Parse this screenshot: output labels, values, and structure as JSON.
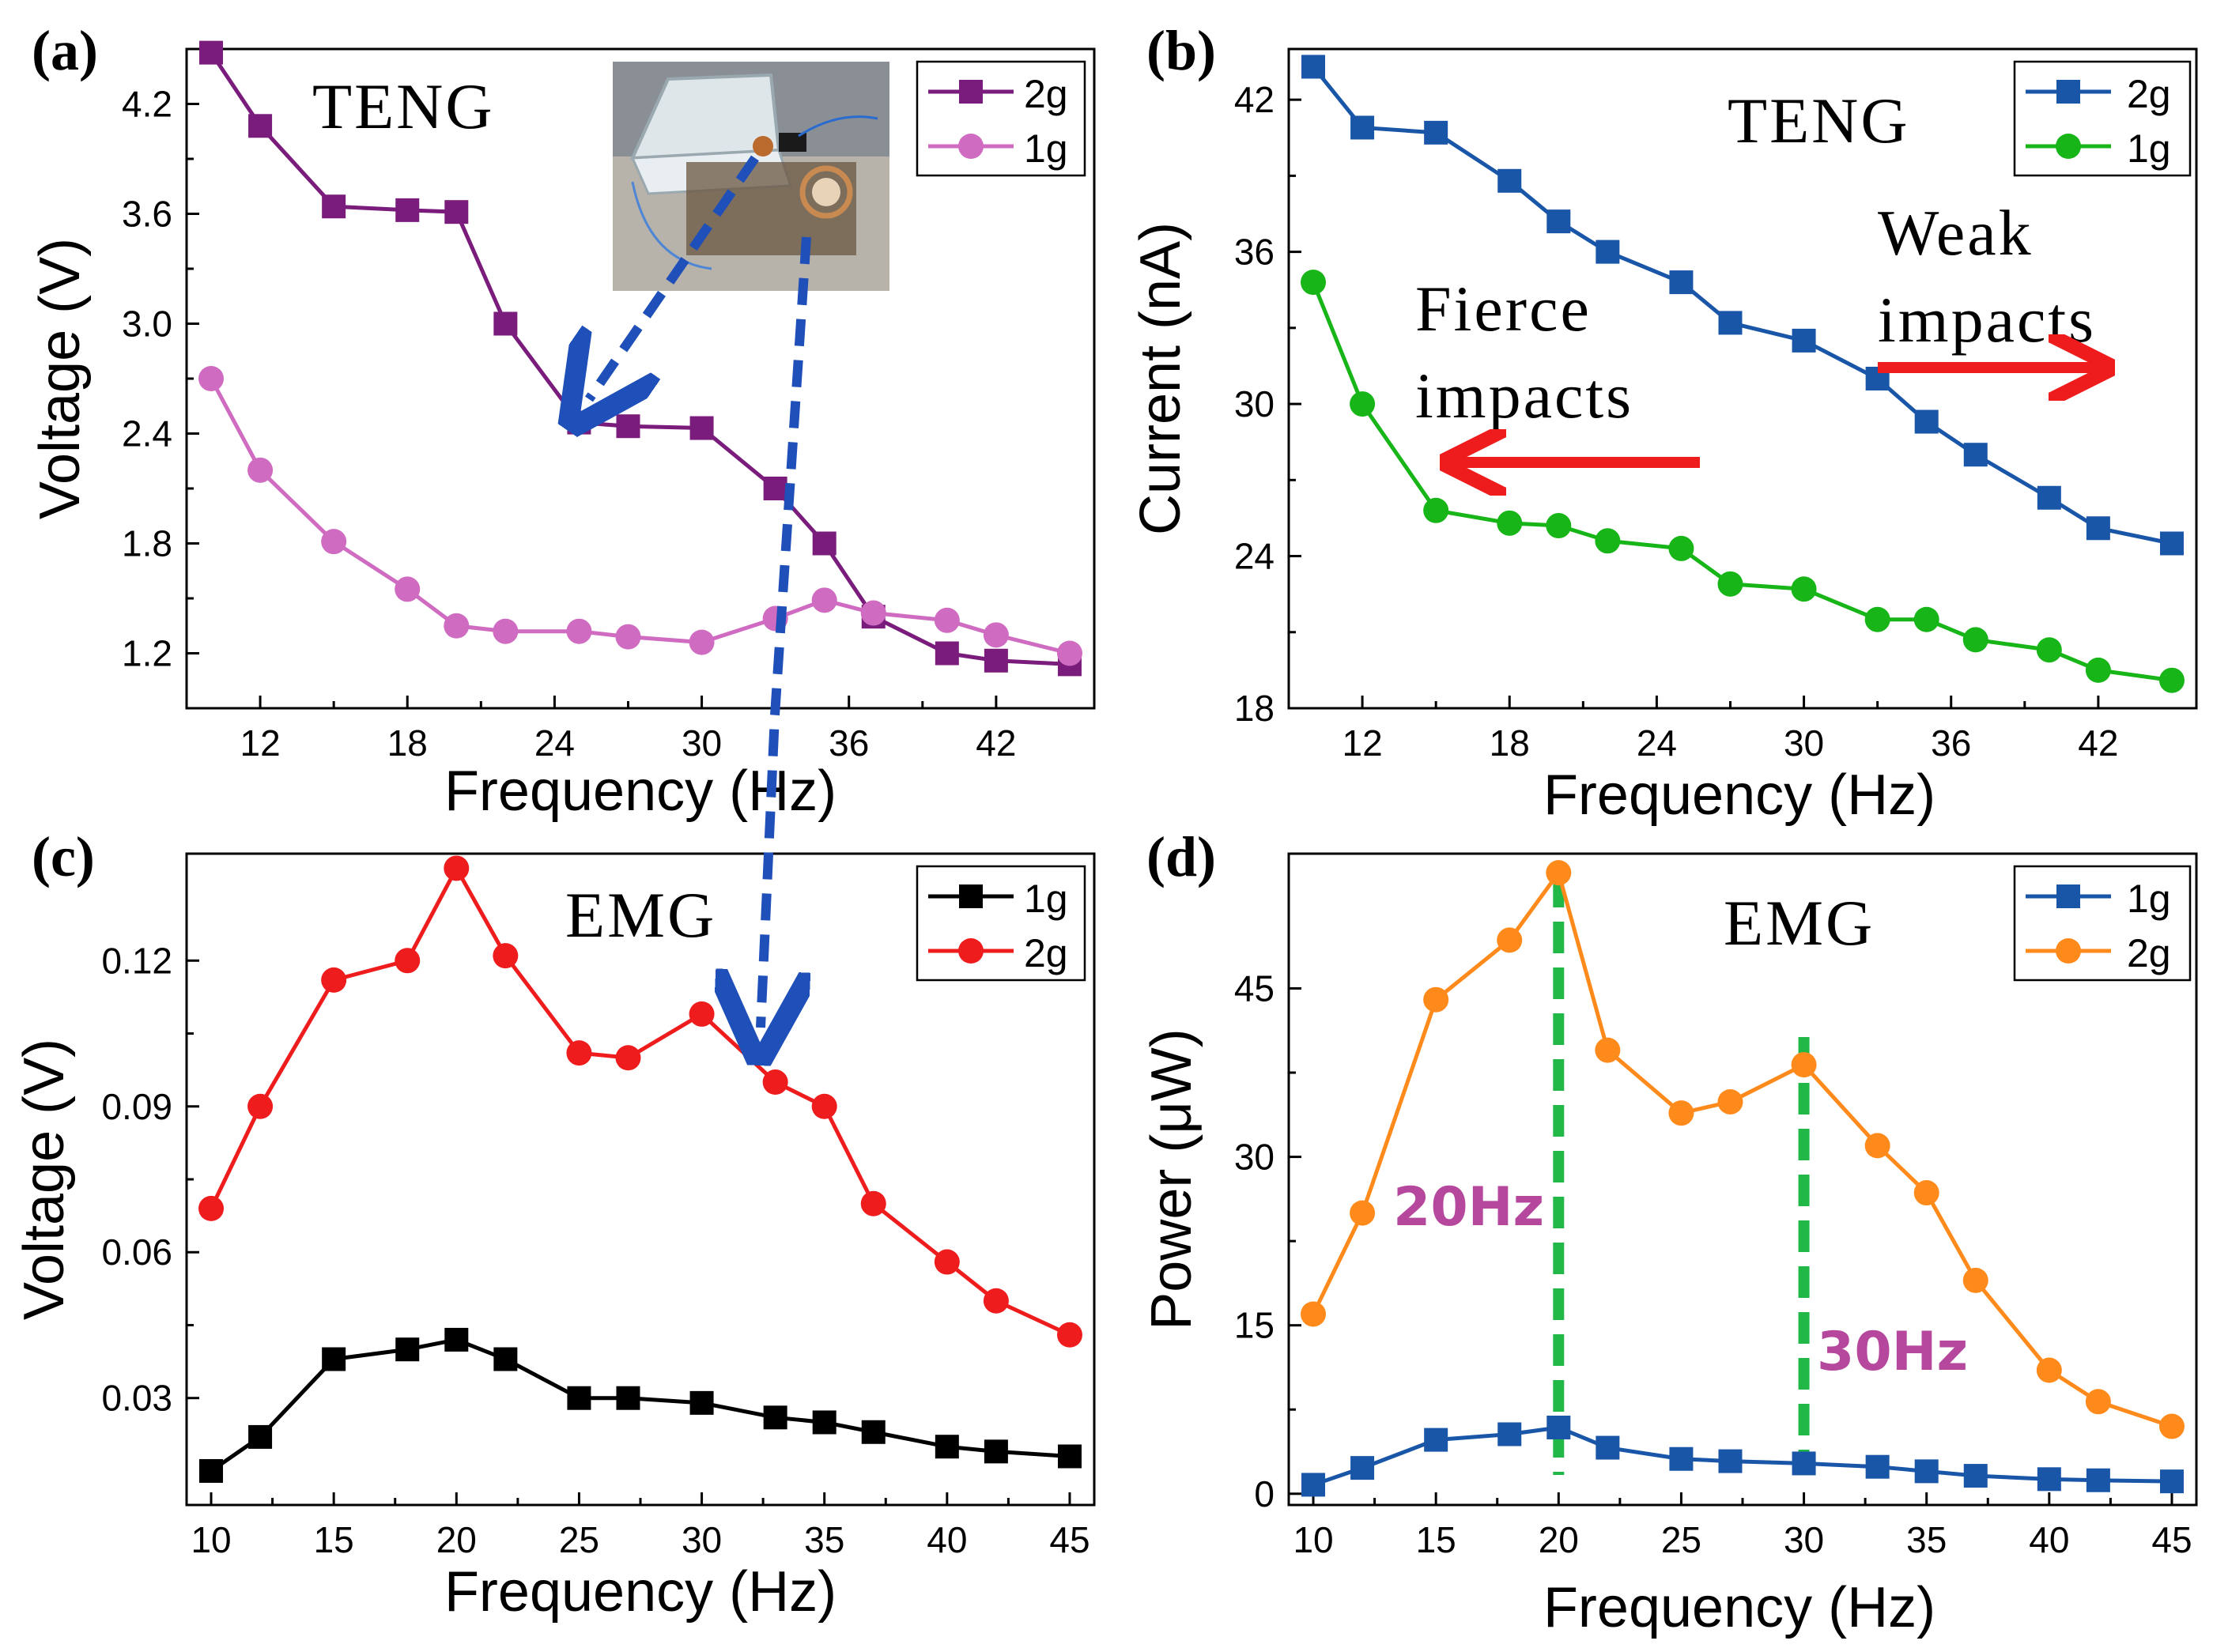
{
  "colors": {
    "purple": "#7a1c7c",
    "pink": "#cf6bc0",
    "blue": "#1a56a8",
    "green": "#17b517",
    "black": "#000000",
    "red": "#ee1c1c",
    "orange": "#ff8a1c",
    "dashBlue": "#1f4fb8",
    "arrowRed": "#ee1c1c",
    "dashGreen": "#21b848",
    "annoPurple": "#b5479c"
  },
  "chart_data": [
    {
      "id": "a",
      "type": "line",
      "panel_label": "(a)",
      "annotation": "TENG",
      "xlabel": "Frequency (Hz)",
      "ylabel": "Voltage (V)",
      "xlim": [
        9,
        46
      ],
      "ylim": [
        0.9,
        4.5
      ],
      "xticks": [
        12,
        18,
        24,
        30,
        36,
        42
      ],
      "yticks": [
        1.2,
        1.8,
        2.4,
        3.0,
        3.6,
        4.2
      ],
      "xtick_labels": [
        "12",
        "18",
        "24",
        "30",
        "36",
        "42"
      ],
      "ytick_labels": [
        "1.2",
        "1.8",
        "2.4",
        "3.0",
        "3.6",
        "4.2"
      ],
      "x": [
        10,
        12,
        15,
        18,
        20,
        22,
        25,
        27,
        30,
        33,
        35,
        37,
        40,
        42,
        45
      ],
      "series": [
        {
          "name": "2g",
          "marker": "square",
          "color": "purple",
          "values": [
            4.48,
            4.08,
            3.64,
            3.62,
            3.61,
            3.0,
            2.46,
            2.44,
            2.43,
            2.1,
            1.8,
            1.4,
            1.2,
            1.16,
            1.14
          ]
        },
        {
          "name": "1g",
          "marker": "circle",
          "color": "pink",
          "values": [
            2.7,
            2.2,
            1.81,
            1.55,
            1.35,
            1.32,
            1.32,
            1.29,
            1.26,
            1.39,
            1.49,
            1.42,
            1.38,
            1.3,
            1.2
          ]
        }
      ]
    },
    {
      "id": "b",
      "type": "line",
      "panel_label": "(b)",
      "annotation": "TENG",
      "xlabel": "Frequency (Hz)",
      "ylabel": "Current (nA)",
      "xlim": [
        9,
        46
      ],
      "ylim": [
        18,
        44
      ],
      "xticks": [
        12,
        18,
        24,
        30,
        36,
        42
      ],
      "yticks": [
        18,
        24,
        30,
        36,
        42
      ],
      "xtick_labels": [
        "12",
        "18",
        "24",
        "30",
        "36",
        "42"
      ],
      "ytick_labels": [
        "18",
        "24",
        "30",
        "36",
        "42"
      ],
      "x": [
        10,
        12,
        15,
        18,
        20,
        22,
        25,
        27,
        30,
        33,
        35,
        37,
        40,
        42,
        45
      ],
      "series": [
        {
          "name": "2g",
          "marker": "square",
          "color": "blue",
          "values": [
            43.3,
            40.9,
            40.7,
            38.8,
            37.2,
            36.0,
            34.8,
            33.2,
            32.5,
            31.0,
            29.3,
            28.0,
            26.3,
            25.1,
            24.5
          ]
        },
        {
          "name": "1g",
          "marker": "circle",
          "color": "green",
          "values": [
            34.8,
            30.0,
            25.8,
            25.3,
            25.2,
            24.6,
            24.3,
            22.9,
            22.7,
            21.5,
            21.5,
            20.7,
            20.3,
            19.5,
            19.1
          ]
        }
      ],
      "annotations": {
        "fierce_line1": "Fierce",
        "fierce_line2": "impacts",
        "weak_line1": "Weak",
        "weak_line2": "impacts"
      }
    },
    {
      "id": "c",
      "type": "line",
      "panel_label": "(c)",
      "annotation": "EMG",
      "xlabel": "Frequency (Hz)",
      "ylabel": "Voltage (V)",
      "xlim": [
        9,
        46
      ],
      "ylim": [
        0.008,
        0.142
      ],
      "xticks": [
        10,
        15,
        20,
        25,
        30,
        35,
        40,
        45
      ],
      "yticks": [
        0.03,
        0.06,
        0.09,
        0.12
      ],
      "xtick_labels": [
        "10",
        "15",
        "20",
        "25",
        "30",
        "35",
        "40",
        "45"
      ],
      "ytick_labels": [
        "0.03",
        "0.06",
        "0.09",
        "0.12"
      ],
      "x": [
        10,
        12,
        15,
        18,
        20,
        22,
        25,
        27,
        30,
        33,
        35,
        37,
        40,
        42,
        45
      ],
      "series": [
        {
          "name": "1g",
          "marker": "square",
          "color": "black",
          "values": [
            0.015,
            0.022,
            0.038,
            0.04,
            0.042,
            0.038,
            0.03,
            0.03,
            0.029,
            0.026,
            0.025,
            0.023,
            0.02,
            0.019,
            0.018
          ]
        },
        {
          "name": "2g",
          "marker": "circle",
          "color": "red",
          "values": [
            0.069,
            0.09,
            0.116,
            0.12,
            0.139,
            0.121,
            0.101,
            0.1,
            0.109,
            0.095,
            0.09,
            0.07,
            0.058,
            0.05,
            0.043
          ]
        }
      ]
    },
    {
      "id": "d",
      "type": "line",
      "panel_label": "(d)",
      "annotation": "EMG",
      "xlabel": "Frequency (Hz)",
      "ylabel": "Power (μW)",
      "xlim": [
        9,
        46
      ],
      "ylim": [
        -1,
        57
      ],
      "xticks": [
        10,
        15,
        20,
        25,
        30,
        35,
        40,
        45
      ],
      "yticks": [
        0,
        15,
        30,
        45
      ],
      "xtick_labels": [
        "10",
        "15",
        "20",
        "25",
        "30",
        "35",
        "40",
        "45"
      ],
      "ytick_labels": [
        "0",
        "15",
        "30",
        "45"
      ],
      "x": [
        10,
        12,
        15,
        18,
        20,
        22,
        25,
        27,
        30,
        33,
        35,
        37,
        40,
        42,
        45
      ],
      "series": [
        {
          "name": "1g",
          "marker": "square",
          "color": "blue",
          "values": [
            0.8,
            2.3,
            4.8,
            5.3,
            5.9,
            4.1,
            3.1,
            2.9,
            2.7,
            2.4,
            2.0,
            1.6,
            1.3,
            1.2,
            1.1
          ]
        },
        {
          "name": "2g",
          "marker": "circle",
          "color": "orange",
          "values": [
            16.0,
            25.0,
            44.0,
            49.3,
            55.3,
            39.5,
            33.9,
            34.9,
            38.2,
            31.0,
            26.8,
            19.0,
            11.0,
            8.2,
            6.0
          ]
        }
      ],
      "vlines": [
        20,
        30
      ],
      "annotations": {
        "hz20": "20Hz",
        "hz30": "30Hz"
      }
    }
  ]
}
